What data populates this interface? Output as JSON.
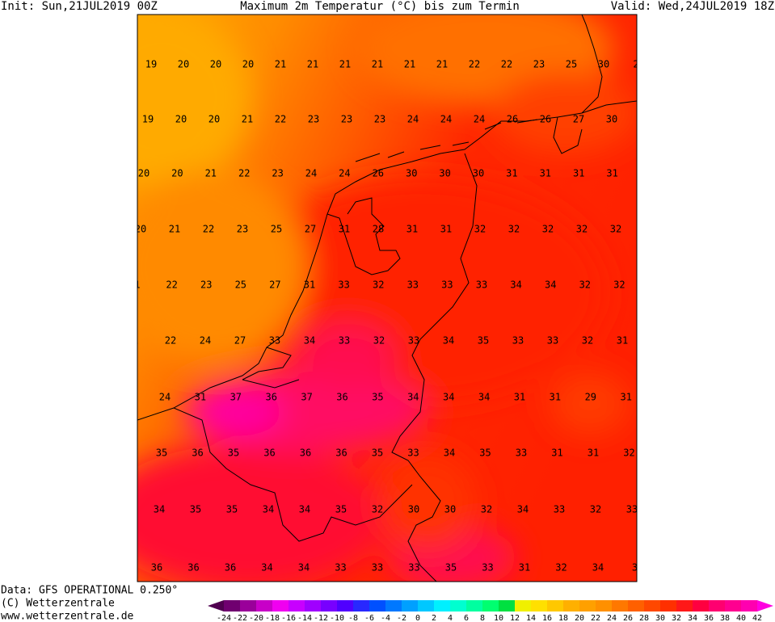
{
  "header": {
    "init": "Init: Sun,21JUL2019 00Z",
    "title": "Maximum 2m Temperatur (°C) bis zum Termin",
    "valid": "Valid: Wed,24JUL2019 18Z"
  },
  "map": {
    "rows": [
      [
        19,
        20,
        20,
        20,
        21,
        21,
        21,
        21,
        21,
        21,
        22,
        22,
        23,
        25,
        30,
        2
      ],
      [
        19,
        20,
        20,
        21,
        22,
        23,
        23,
        23,
        24,
        24,
        24,
        26,
        26,
        27,
        30
      ],
      [
        20,
        20,
        21,
        22,
        23,
        24,
        24,
        26,
        30,
        30,
        30,
        31,
        31,
        31,
        31
      ],
      [
        20,
        21,
        22,
        23,
        25,
        27,
        31,
        28,
        31,
        31,
        32,
        32,
        32,
        32,
        32
      ],
      [
        1,
        22,
        23,
        25,
        27,
        31,
        33,
        32,
        33,
        33,
        33,
        34,
        34,
        32,
        32
      ],
      [
        2,
        22,
        24,
        27,
        33,
        34,
        33,
        32,
        33,
        34,
        35,
        33,
        33,
        32,
        31
      ],
      [
        24,
        31,
        37,
        36,
        37,
        36,
        35,
        34,
        34,
        34,
        31,
        31,
        29,
        31
      ],
      [
        35,
        36,
        35,
        36,
        36,
        36,
        35,
        33,
        34,
        35,
        33,
        31,
        31,
        32
      ],
      [
        34,
        35,
        35,
        34,
        34,
        35,
        32,
        30,
        30,
        32,
        34,
        33,
        32,
        33
      ],
      [
        36,
        36,
        36,
        34,
        34,
        33,
        33,
        33,
        35,
        33,
        31,
        32,
        34,
        3
      ]
    ]
  },
  "footer": {
    "source": "Data: GFS OPERATIONAL 0.250°",
    "copyright": "(C) Wetterzentrale",
    "url": "www.wetterzentrale.de"
  },
  "colorbar": {
    "ticks": [
      -24,
      -22,
      -20,
      -18,
      -16,
      -14,
      -12,
      -10,
      -8,
      -6,
      -4,
      -2,
      0,
      2,
      4,
      6,
      8,
      10,
      12,
      14,
      16,
      18,
      20,
      22,
      24,
      26,
      28,
      30,
      32,
      34,
      36,
      38,
      40,
      42
    ],
    "colors": [
      "#500050",
      "#700070",
      "#9a009a",
      "#c800c8",
      "#f000f0",
      "#c800ff",
      "#a000ff",
      "#7800ff",
      "#5000ff",
      "#2828ff",
      "#0050ff",
      "#0078ff",
      "#00a0ff",
      "#00c8ff",
      "#00f0ff",
      "#00ffd0",
      "#00ffa0",
      "#00ff70",
      "#00e040",
      "#f0f000",
      "#ffe000",
      "#ffc800",
      "#ffb000",
      "#ffa000",
      "#ff9000",
      "#ff7800",
      "#ff6000",
      "#ff4800",
      "#ff3000",
      "#ff1818",
      "#ff0040",
      "#ff0070",
      "#ff0090",
      "#ff00b0",
      "#ff00e0"
    ]
  }
}
